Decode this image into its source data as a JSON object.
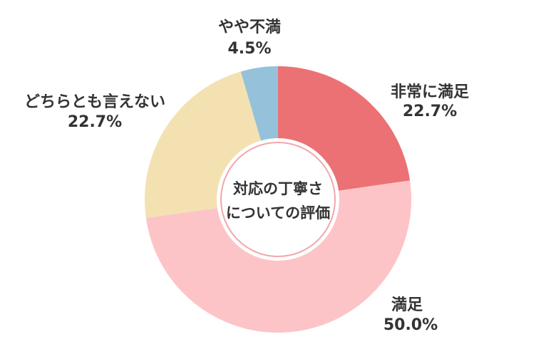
{
  "chart_data": {
    "type": "pie",
    "title_lines": [
      "対応の丁寧さ",
      "についての評価"
    ],
    "legend": "labels-on-slices",
    "slices": [
      {
        "name": "非常に満足",
        "value": 22.7,
        "label": "22.7%",
        "color": "#EB7175"
      },
      {
        "name": "満足",
        "value": 50.0,
        "label": "50.0%",
        "color": "#FDC4C7"
      },
      {
        "name": "どちらとも言えない",
        "value": 22.7,
        "label": "22.7%",
        "color": "#F4E1B2"
      },
      {
        "name": "やや不満",
        "value": 4.5,
        "label": "4.5%",
        "color": "#95C2DA"
      }
    ],
    "center_ring_color": "#F2A6AA"
  }
}
